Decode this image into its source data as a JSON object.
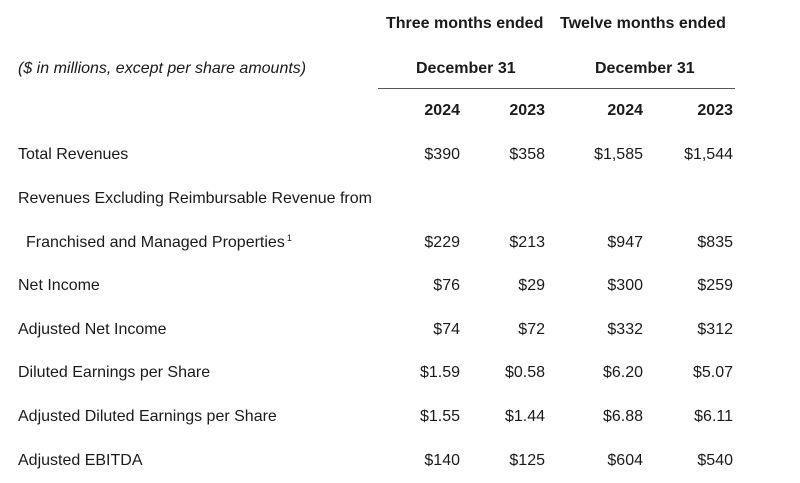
{
  "header": {
    "three_months": "Three months ended",
    "twelve_months": "Twelve months ended",
    "units_note": "($ in millions, except per share amounts)",
    "period_three": "December 31",
    "period_twelve": "December 31",
    "years": [
      "2024",
      "2023",
      "2024",
      "2023"
    ]
  },
  "rows": [
    {
      "label": "Total Revenues",
      "values": [
        "$390",
        "$358",
        "$1,585",
        "$1,544"
      ]
    },
    {
      "label": "Revenues Excluding Reimbursable Revenue from",
      "values": []
    },
    {
      "label": "Franchised and Managed Properties",
      "footnote": "1",
      "values": [
        "$229",
        "$213",
        "$947",
        "$835"
      ]
    },
    {
      "label": "Net Income",
      "values": [
        "$76",
        "$29",
        "$300",
        "$259"
      ]
    },
    {
      "label": "Adjusted Net Income",
      "values": [
        "$74",
        "$72",
        "$332",
        "$312"
      ]
    },
    {
      "label": "Diluted Earnings per Share",
      "values": [
        "$1.59",
        "$0.58",
        "$6.20",
        "$5.07"
      ]
    },
    {
      "label": "Adjusted Diluted Earnings per Share",
      "values": [
        "$1.55",
        "$1.44",
        "$6.88",
        "$6.11"
      ]
    },
    {
      "label": "Adjusted EBITDA",
      "values": [
        "$140",
        "$125",
        "$604",
        "$540"
      ]
    }
  ]
}
